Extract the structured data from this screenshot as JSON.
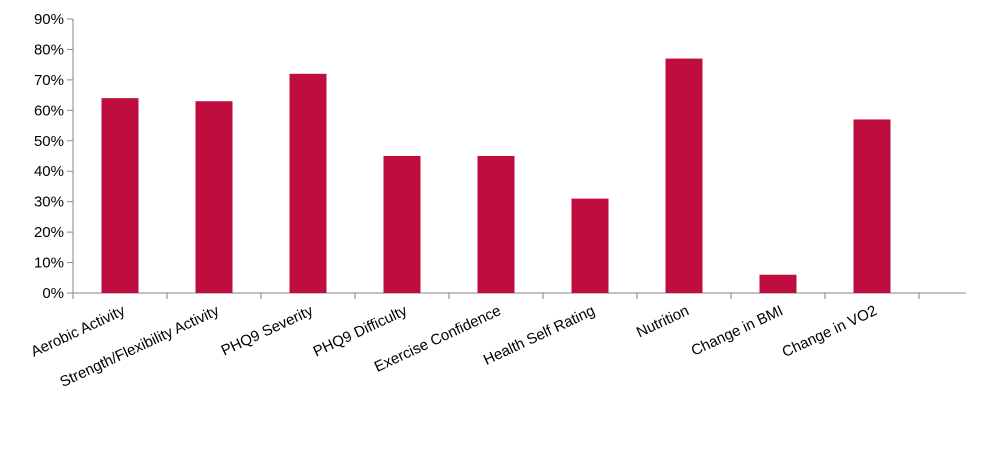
{
  "chart_data": {
    "type": "bar",
    "title": "",
    "xlabel": "",
    "ylabel": "",
    "categories": [
      "Aerobic Activity",
      "Strength/Flexibility Activity",
      "PHQ9 Severity",
      "PHQ9 Difficulty",
      "Exercise Confidence",
      "Health Self Rating",
      "Nutrition",
      "Change in BMI",
      "Change in VO2"
    ],
    "values": [
      64,
      63,
      72,
      45,
      45,
      31,
      77,
      6,
      57
    ],
    "ylim": [
      0,
      90
    ],
    "yticks": [
      "0%",
      "10%",
      "20%",
      "30%",
      "40%",
      "50%",
      "60%",
      "70%",
      "80%",
      "90%"
    ],
    "slot_count": 9,
    "grid": false,
    "legend": "none",
    "bar_color": "#c00d3f",
    "axis_color": "#868686"
  }
}
